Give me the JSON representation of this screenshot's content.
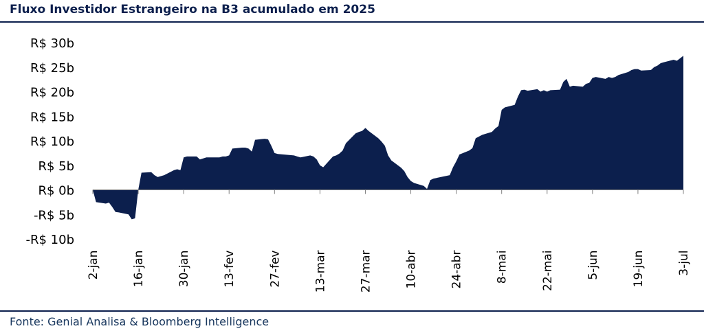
{
  "header": {
    "title": "Fluxo Investidor Estrangeiro na B3 acumulado em 2025"
  },
  "footer": {
    "source": "Fonte: Genial Analisa & Bloomberg Intelligence"
  },
  "colors": {
    "area": "#0c1f4d",
    "rule": "#0c1f4d"
  },
  "chart_data": {
    "type": "area",
    "title": "Fluxo Investidor Estrangeiro na B3 acumulado em 2025",
    "xlabel": "",
    "ylabel": "",
    "ylim": [
      -10,
      30
    ],
    "yticks": [
      30,
      25,
      20,
      15,
      10,
      5,
      0,
      -5,
      -10
    ],
    "ytick_labels": [
      "R$ 30b",
      "R$ 25b",
      "R$ 20b",
      "R$ 15b",
      "R$ 10b",
      "R$ 5b",
      "R$ 0b",
      "-R$ 5b",
      "-R$ 10b"
    ],
    "xtick_labels": [
      "2-jan",
      "16-jan",
      "30-jan",
      "13-fev",
      "27-fev",
      "13-mar",
      "27-mar",
      "10-abr",
      "24-abr",
      "8-mai",
      "22-mai",
      "5-jun",
      "19-jun",
      "3-jul"
    ],
    "grid": false,
    "series": [
      {
        "values": [
          [
            "2025-01-02",
            0
          ],
          [
            "2025-01-03",
            -2.5
          ],
          [
            "2025-01-06",
            -2.8
          ],
          [
            "2025-01-07",
            -2.6
          ],
          [
            "2025-01-08",
            -3.5
          ],
          [
            "2025-01-09",
            -4.5
          ],
          [
            "2025-01-10",
            -4.6
          ],
          [
            "2025-01-13",
            -5.0
          ],
          [
            "2025-01-14",
            -6.0
          ],
          [
            "2025-01-15",
            -5.8
          ],
          [
            "2025-01-16",
            0
          ],
          [
            "2025-01-17",
            3.5
          ],
          [
            "2025-01-20",
            3.6
          ],
          [
            "2025-01-21",
            3.0
          ],
          [
            "2025-01-22",
            2.6
          ],
          [
            "2025-01-23",
            2.8
          ],
          [
            "2025-01-24",
            3.0
          ],
          [
            "2025-01-27",
            4.0
          ],
          [
            "2025-01-28",
            4.2
          ],
          [
            "2025-01-29",
            4.0
          ],
          [
            "2025-01-30",
            6.6
          ],
          [
            "2025-01-31",
            6.8
          ],
          [
            "2025-02-03",
            6.8
          ],
          [
            "2025-02-04",
            6.2
          ],
          [
            "2025-02-05",
            6.4
          ],
          [
            "2025-02-06",
            6.6
          ],
          [
            "2025-02-07",
            6.6
          ],
          [
            "2025-02-10",
            6.6
          ],
          [
            "2025-02-11",
            6.8
          ],
          [
            "2025-02-12",
            6.8
          ],
          [
            "2025-02-13",
            7.0
          ],
          [
            "2025-02-14",
            8.4
          ],
          [
            "2025-02-17",
            8.6
          ],
          [
            "2025-02-18",
            8.6
          ],
          [
            "2025-02-19",
            8.4
          ],
          [
            "2025-02-20",
            7.8
          ],
          [
            "2025-02-21",
            10.2
          ],
          [
            "2025-02-24",
            10.4
          ],
          [
            "2025-02-25",
            10.3
          ],
          [
            "2025-02-26",
            9.0
          ],
          [
            "2025-02-27",
            7.5
          ],
          [
            "2025-02-28",
            7.3
          ],
          [
            "2025-03-05",
            7.0
          ],
          [
            "2025-03-06",
            6.8
          ],
          [
            "2025-03-07",
            6.6
          ],
          [
            "2025-03-10",
            7.0
          ],
          [
            "2025-03-11",
            6.8
          ],
          [
            "2025-03-12",
            6.2
          ],
          [
            "2025-03-13",
            5.0
          ],
          [
            "2025-03-14",
            4.6
          ],
          [
            "2025-03-17",
            6.8
          ],
          [
            "2025-03-18",
            7.0
          ],
          [
            "2025-03-19",
            7.4
          ],
          [
            "2025-03-20",
            8.0
          ],
          [
            "2025-03-21",
            9.5
          ],
          [
            "2025-03-24",
            11.5
          ],
          [
            "2025-03-25",
            11.8
          ],
          [
            "2025-03-26",
            12.0
          ],
          [
            "2025-03-27",
            12.6
          ],
          [
            "2025-03-28",
            12.0
          ],
          [
            "2025-03-31",
            10.5
          ],
          [
            "2025-04-01",
            9.8
          ],
          [
            "2025-04-02",
            9.0
          ],
          [
            "2025-04-03",
            7.0
          ],
          [
            "2025-04-04",
            6.0
          ],
          [
            "2025-04-07",
            4.5
          ],
          [
            "2025-04-08",
            3.8
          ],
          [
            "2025-04-09",
            2.6
          ],
          [
            "2025-04-10",
            1.8
          ],
          [
            "2025-04-11",
            1.4
          ],
          [
            "2025-04-14",
            0.8
          ],
          [
            "2025-04-15",
            0.2
          ],
          [
            "2025-04-16",
            2.0
          ],
          [
            "2025-04-17",
            2.3
          ],
          [
            "2025-04-22",
            3.0
          ],
          [
            "2025-04-23",
            4.6
          ],
          [
            "2025-04-24",
            5.8
          ],
          [
            "2025-04-25",
            7.2
          ],
          [
            "2025-04-28",
            8.0
          ],
          [
            "2025-04-29",
            8.5
          ],
          [
            "2025-04-30",
            10.5
          ],
          [
            "2025-05-02",
            11.2
          ],
          [
            "2025-05-05",
            11.8
          ],
          [
            "2025-05-06",
            12.5
          ],
          [
            "2025-05-07",
            13.0
          ],
          [
            "2025-05-08",
            16.3
          ],
          [
            "2025-05-09",
            16.8
          ],
          [
            "2025-05-12",
            17.3
          ],
          [
            "2025-05-13",
            19.0
          ],
          [
            "2025-05-14",
            20.3
          ],
          [
            "2025-05-15",
            20.4
          ],
          [
            "2025-05-16",
            20.2
          ],
          [
            "2025-05-19",
            20.5
          ],
          [
            "2025-05-20",
            20.0
          ],
          [
            "2025-05-21",
            20.3
          ],
          [
            "2025-05-22",
            20.0
          ],
          [
            "2025-05-23",
            20.3
          ],
          [
            "2025-05-26",
            20.4
          ],
          [
            "2025-05-27",
            22.0
          ],
          [
            "2025-05-28",
            22.6
          ],
          [
            "2025-05-29",
            21.0
          ],
          [
            "2025-05-30",
            21.2
          ],
          [
            "2025-06-02",
            21.0
          ],
          [
            "2025-06-03",
            21.6
          ],
          [
            "2025-06-04",
            21.8
          ],
          [
            "2025-06-05",
            22.8
          ],
          [
            "2025-06-06",
            23.0
          ],
          [
            "2025-06-09",
            22.6
          ],
          [
            "2025-06-10",
            23.0
          ],
          [
            "2025-06-11",
            22.8
          ],
          [
            "2025-06-12",
            23.0
          ],
          [
            "2025-06-13",
            23.4
          ],
          [
            "2025-06-16",
            24.0
          ],
          [
            "2025-06-17",
            24.4
          ],
          [
            "2025-06-18",
            24.6
          ],
          [
            "2025-06-19",
            24.6
          ],
          [
            "2025-06-20",
            24.3
          ],
          [
            "2025-06-23",
            24.4
          ],
          [
            "2025-06-24",
            25.0
          ],
          [
            "2025-06-25",
            25.3
          ],
          [
            "2025-06-26",
            25.8
          ],
          [
            "2025-06-27",
            26.0
          ],
          [
            "2025-06-30",
            26.5
          ],
          [
            "2025-07-01",
            26.3
          ],
          [
            "2025-07-02",
            26.8
          ],
          [
            "2025-07-03",
            27.3
          ]
        ]
      }
    ]
  }
}
